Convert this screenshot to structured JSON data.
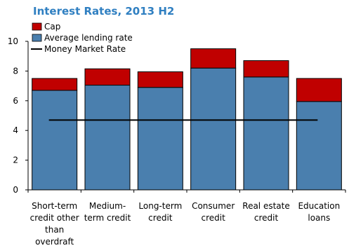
{
  "chart_data": {
    "type": "bar",
    "title": "Interest Rates, 2013 H2",
    "categories": [
      "Short-term credit other than overdraft",
      "Medium-term credit",
      "Long-term credit",
      "Consumer credit",
      "Real estate credit",
      "Education loans"
    ],
    "category_label_lines": [
      [
        "Short-term",
        "credit other",
        "than",
        "overdraft"
      ],
      [
        "Medium-",
        "term credit"
      ],
      [
        "Long-term",
        "credit"
      ],
      [
        "Consumer",
        "credit"
      ],
      [
        "Real estate",
        "credit"
      ],
      [
        "Education",
        "loans"
      ]
    ],
    "series": [
      {
        "name": "Average lending rate",
        "values": [
          6.7,
          7.05,
          6.9,
          8.2,
          7.6,
          5.95
        ],
        "color": "#4a7fae"
      },
      {
        "name": "Cap",
        "values": [
          0.8,
          1.1,
          1.05,
          1.3,
          1.1,
          1.55
        ],
        "color": "#c00000",
        "stacked_on": "Average lending rate"
      }
    ],
    "line": {
      "name": "Money Market Rate",
      "value": 4.7,
      "color": "#000000"
    },
    "legend_order": [
      "Cap",
      "Average lending rate",
      "Money Market Rate"
    ],
    "legend_position": "top-left",
    "ylim": [
      0,
      10
    ],
    "yticks": [
      0,
      2,
      4,
      6,
      8,
      10
    ],
    "xlabel": "",
    "ylabel": "",
    "grid": false
  }
}
